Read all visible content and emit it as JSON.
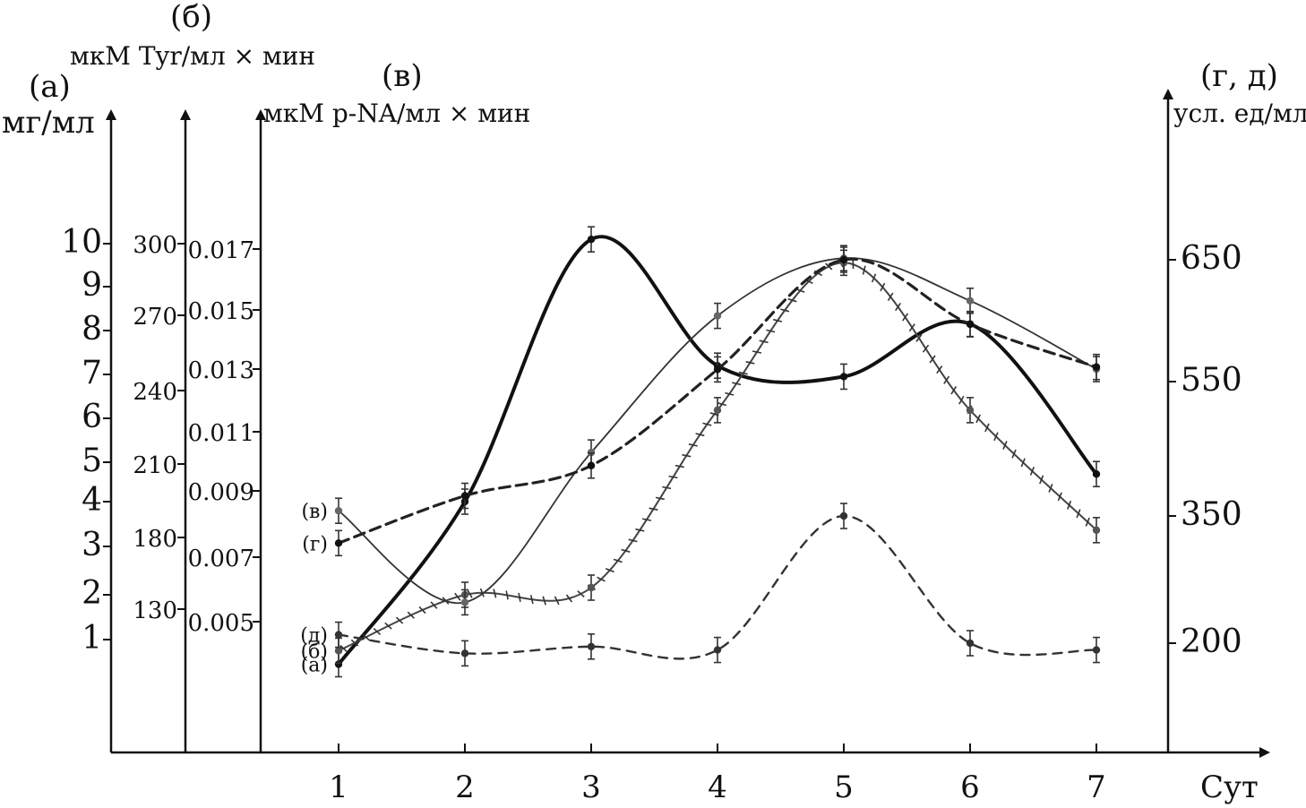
{
  "chart_data": {
    "type": "line",
    "xlabel": "Сут",
    "x": [
      1,
      2,
      3,
      4,
      5,
      6,
      7
    ],
    "axes": [
      {
        "id": "a",
        "letter": "(а)",
        "unit": "мг/мл",
        "ticks": [
          1,
          2,
          3,
          4,
          5,
          6,
          7,
          8,
          9,
          10
        ]
      },
      {
        "id": "b",
        "letter": "(б)",
        "unit": "мкМ Tyr/мл × мин",
        "ticks": [
          130,
          180,
          210,
          240,
          270,
          300
        ]
      },
      {
        "id": "v",
        "letter": "(в)",
        "unit": "мкМ p-NA/мл × мин",
        "ticks": [
          "0.005",
          "0.007",
          "0.009",
          "0.011",
          "0.013",
          "0.015",
          "0.017"
        ]
      },
      {
        "id": "gd",
        "letter": "(г, д)",
        "unit": "усл. ед/мл",
        "ticks": [
          200,
          350,
          550,
          650
        ]
      }
    ],
    "series": [
      {
        "name": "(а)",
        "axis": "a",
        "style": "thick-solid",
        "values": [
          0.45,
          4.0,
          10.1,
          7.2,
          6.95,
          8.15,
          4.7
        ]
      },
      {
        "name": "(б)",
        "axis": "b",
        "style": "hatched",
        "values": [
          101,
          140,
          145,
          232,
          292,
          232,
          183
        ]
      },
      {
        "name": "(в)",
        "axis": "v",
        "style": "thin-solid",
        "values": [
          0.0084,
          0.0056,
          0.0103,
          0.0148,
          0.0167,
          0.0153,
          0.013
        ]
      },
      {
        "name": "(г)",
        "axis": "gd",
        "style": "thick-dashed",
        "values": [
          318,
          380,
          425,
          560,
          650,
          597,
          562
        ]
      },
      {
        "name": "(д)",
        "axis": "gd",
        "style": "thin-dashed",
        "values": [
          210,
          188,
          196,
          192,
          350,
          200,
          192
        ]
      }
    ]
  }
}
